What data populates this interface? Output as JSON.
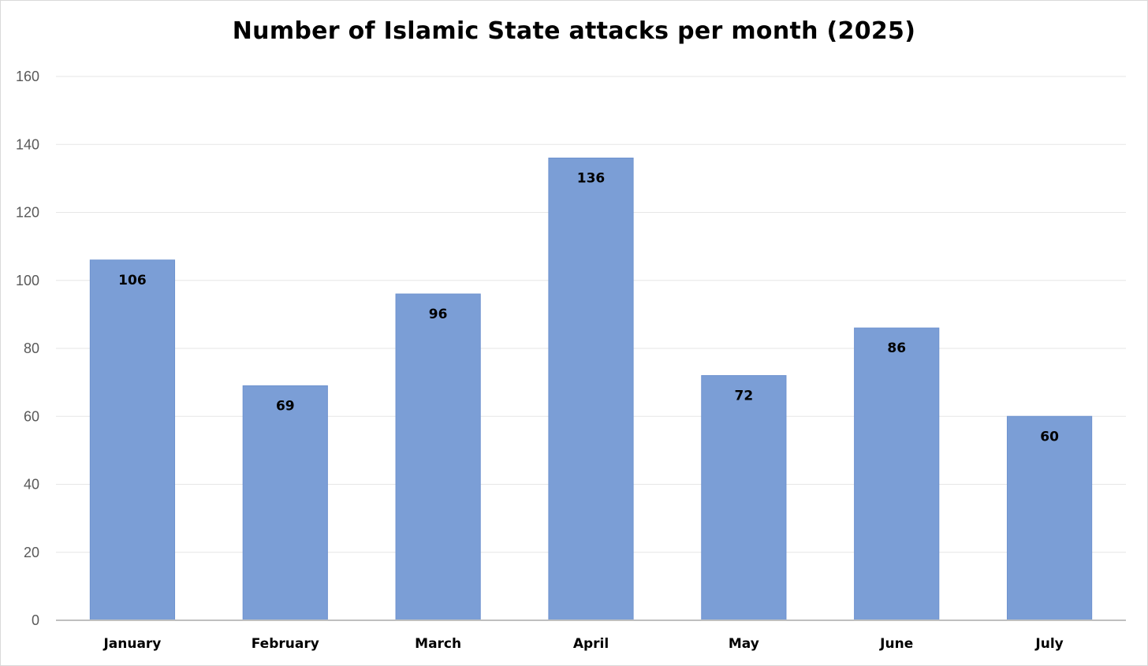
{
  "chart_data": {
    "type": "bar",
    "title": "Number of Islamic State attacks per month (2025)",
    "categories": [
      "January",
      "February",
      "March",
      "April",
      "May",
      "June",
      "July"
    ],
    "values": [
      106,
      69,
      96,
      136,
      72,
      86,
      60
    ],
    "data_labels": [
      "106",
      "69",
      "96",
      "136",
      "72",
      "86",
      "60"
    ],
    "yticks": [
      0,
      20,
      40,
      60,
      80,
      100,
      120,
      140,
      160
    ],
    "ylim": [
      0,
      160
    ],
    "xlabel": "",
    "ylabel": "",
    "grid": true,
    "legend": "none",
    "bar_color": "#7b9ed6"
  }
}
